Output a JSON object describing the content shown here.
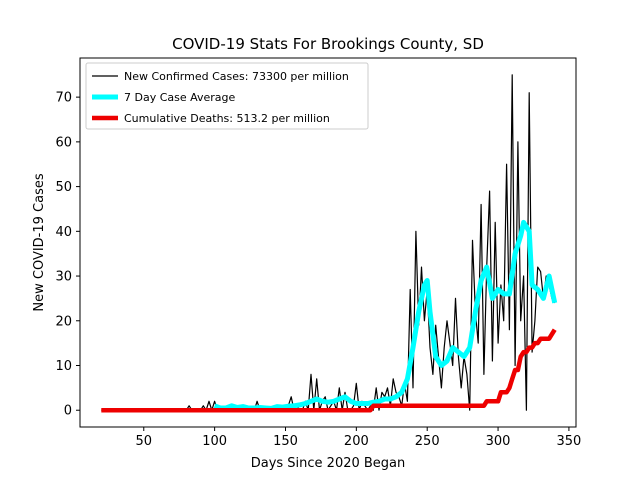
{
  "chart_data": {
    "type": "line",
    "title": "COVID-19 Stats For Brookings County, SD",
    "xlabel": "Days Since 2020 Began",
    "ylabel": "New COVID-19 Cases",
    "xlim": [
      5,
      355
    ],
    "ylim": [
      -3.75,
      78.75
    ],
    "xticks": [
      50,
      100,
      150,
      200,
      250,
      300,
      350
    ],
    "yticks": [
      0,
      10,
      20,
      30,
      40,
      50,
      60,
      70
    ],
    "grid": false,
    "legend_position": "top-left",
    "series": [
      {
        "name": "New Confirmed Cases: 73300 per million",
        "color": "#000000",
        "x": [
          20,
          60,
          80,
          82,
          84,
          86,
          90,
          92,
          94,
          96,
          98,
          100,
          102,
          104,
          106,
          108,
          110,
          112,
          114,
          116,
          118,
          120,
          122,
          124,
          126,
          128,
          130,
          132,
          134,
          136,
          138,
          140,
          142,
          144,
          146,
          148,
          150,
          152,
          154,
          156,
          158,
          160,
          162,
          164,
          166,
          168,
          170,
          172,
          174,
          176,
          178,
          180,
          182,
          184,
          186,
          188,
          190,
          192,
          194,
          196,
          198,
          200,
          202,
          204,
          206,
          208,
          210,
          212,
          214,
          216,
          218,
          220,
          222,
          224,
          226,
          228,
          230,
          232,
          234,
          236,
          238,
          240,
          242,
          244,
          246,
          248,
          250,
          252,
          254,
          256,
          258,
          260,
          262,
          264,
          266,
          268,
          270,
          272,
          274,
          276,
          278,
          280,
          282,
          284,
          286,
          288,
          290,
          292,
          294,
          296,
          298,
          300,
          302,
          304,
          306,
          308,
          310,
          312,
          314,
          316,
          318,
          320,
          322,
          324,
          326,
          328,
          330,
          332,
          334,
          336,
          338,
          340
        ],
        "y": [
          0,
          0,
          0,
          1,
          0,
          0,
          0,
          1,
          0,
          2,
          0,
          2,
          0,
          0,
          0,
          0,
          0,
          1,
          0,
          0,
          1,
          0,
          0,
          0,
          0,
          0,
          2,
          0,
          0,
          0,
          0,
          0,
          0,
          0,
          0,
          0,
          0,
          1,
          3,
          0,
          1,
          0,
          0,
          2,
          0,
          8,
          0,
          7,
          0,
          2,
          3,
          0,
          1,
          2,
          0,
          5,
          0,
          4,
          0,
          0,
          1,
          6,
          0,
          2,
          1,
          0,
          1,
          0,
          5,
          0,
          4,
          3,
          5,
          1,
          7,
          4,
          3,
          1,
          6,
          2,
          27,
          5,
          40,
          19,
          32,
          20,
          27,
          14,
          8,
          19,
          12,
          5,
          14,
          20,
          15,
          10,
          25,
          12,
          5,
          12,
          8,
          0,
          38,
          22,
          15,
          46,
          8,
          32,
          49,
          11,
          42,
          15,
          28,
          20,
          55,
          18,
          75,
          10,
          60,
          20,
          30,
          0,
          71,
          13,
          20,
          32,
          31,
          25,
          30,
          28,
          25,
          24
        ],
        "width": 1.2
      },
      {
        "name": "7 Day Case Average",
        "color": "#00ffff",
        "x": [
          100,
          104,
          108,
          112,
          116,
          120,
          124,
          128,
          132,
          136,
          140,
          144,
          148,
          152,
          156,
          160,
          164,
          168,
          172,
          176,
          180,
          184,
          188,
          192,
          196,
          200,
          204,
          208,
          212,
          216,
          220,
          224,
          228,
          232,
          236,
          240,
          244,
          248,
          250,
          252,
          256,
          260,
          264,
          268,
          272,
          276,
          280,
          284,
          288,
          292,
          296,
          300,
          304,
          308,
          312,
          316,
          318,
          320,
          322,
          324,
          328,
          332,
          336,
          340
        ],
        "y": [
          1,
          0.5,
          0.5,
          1,
          0.6,
          0.8,
          0.5,
          0.5,
          0.6,
          0.5,
          0.4,
          0.8,
          0.7,
          0.9,
          1,
          1.2,
          1.5,
          2,
          2.5,
          2,
          1.8,
          2,
          2.5,
          3,
          2,
          1.5,
          1.5,
          1.5,
          1.8,
          2,
          2.5,
          2.5,
          3,
          4,
          7,
          14,
          22,
          28,
          29,
          22,
          12,
          10,
          11,
          14,
          13,
          12,
          14,
          22,
          29,
          32,
          25,
          27,
          26,
          26,
          35,
          39,
          42,
          41,
          40,
          28,
          27,
          25,
          30,
          24
        ],
        "width": 5
      },
      {
        "name": "Cumulative Deaths: 513.2 per million",
        "color": "#ee0000",
        "x": [
          20,
          210,
          212,
          214,
          216,
          256,
          258,
          260,
          290,
          292,
          294,
          296,
          298,
          300,
          302,
          304,
          306,
          308,
          310,
          312,
          314,
          316,
          318,
          320,
          322,
          324,
          326,
          328,
          330,
          332,
          334,
          336,
          338,
          340
        ],
        "y": [
          0,
          0,
          1,
          1,
          1,
          1,
          1,
          1,
          1,
          2,
          2,
          2,
          2,
          2,
          4,
          4,
          4,
          5,
          7,
          9,
          9,
          12,
          13,
          13,
          14,
          14,
          15,
          15,
          16,
          16,
          16,
          16,
          17,
          18
        ],
        "width": 4.5
      }
    ]
  }
}
